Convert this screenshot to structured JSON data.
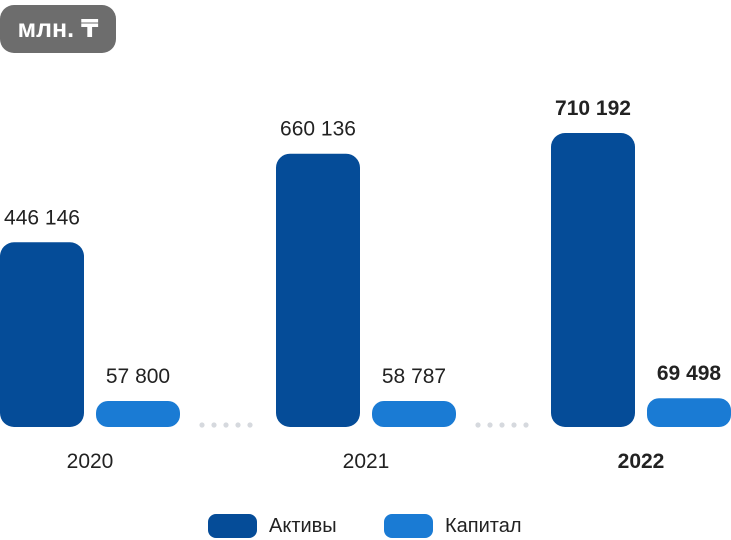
{
  "unit_label": "млн. ₸",
  "colors": {
    "assets": "#054c98",
    "capital": "#1a7bd4",
    "dots": "#d6d9de"
  },
  "legend": [
    {
      "label": "Активы",
      "color": "#054c98"
    },
    {
      "label": "Капитал",
      "color": "#1a7bd4"
    }
  ],
  "chart_data": {
    "type": "bar",
    "categories": [
      "2020",
      "2021",
      "2022"
    ],
    "series": [
      {
        "name": "Активы",
        "values": [
          446146,
          660136,
          710192
        ],
        "labels": [
          "446 146",
          "660 136",
          "710 192"
        ]
      },
      {
        "name": "Капитал",
        "values": [
          57800,
          58787,
          69498
        ],
        "labels": [
          "57 800",
          "58 787",
          "69 498"
        ]
      }
    ],
    "highlight_category": "2022"
  }
}
